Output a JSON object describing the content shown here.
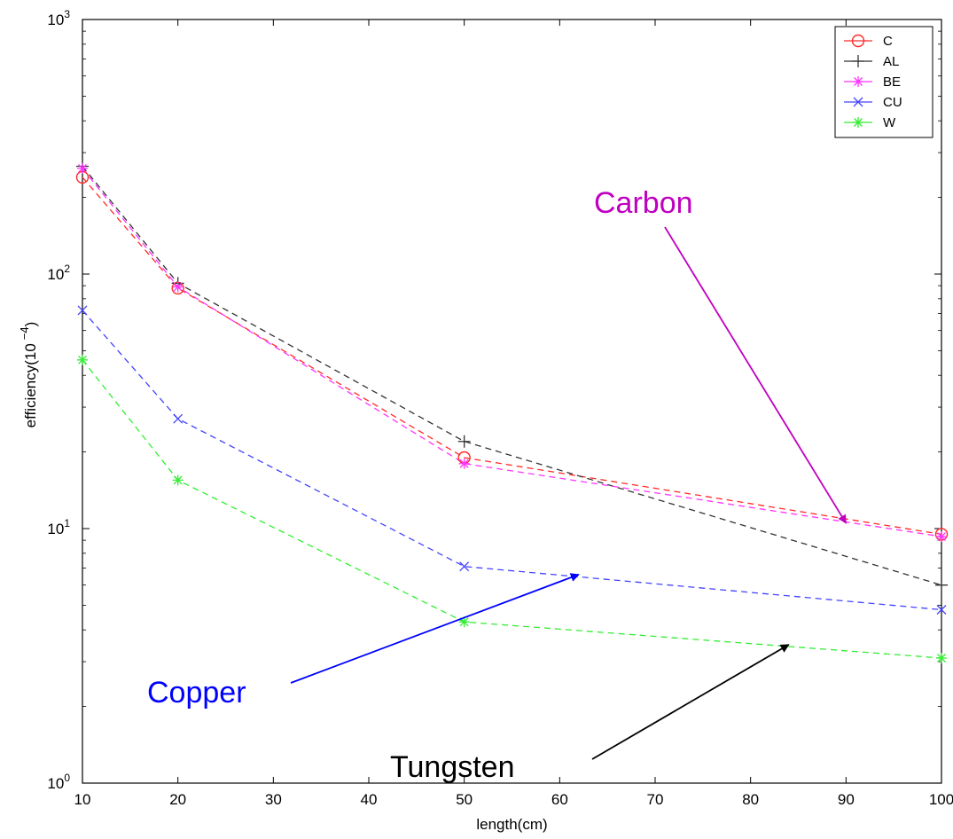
{
  "chart_data": {
    "type": "line",
    "xlabel": "length(cm)",
    "ylabel": "efficiency(10",
    "ylabel_exponent": "−4",
    "ylabel_close": ")",
    "y_scale": "log",
    "xlim": [
      10,
      100
    ],
    "ylim": [
      1,
      1000
    ],
    "x_ticks": [
      "10",
      "20",
      "30",
      "40",
      "50",
      "60",
      "70",
      "80",
      "90",
      "100"
    ],
    "y_ticks": [
      {
        "value": 1,
        "base": "10",
        "exp": "0"
      },
      {
        "value": 10,
        "base": "10",
        "exp": "1"
      },
      {
        "value": 100,
        "base": "10",
        "exp": "2"
      },
      {
        "value": 1000,
        "base": "10",
        "exp": "3"
      }
    ],
    "legend_position": "top-right",
    "grid": false,
    "x": [
      10,
      20,
      50,
      100
    ],
    "series": [
      {
        "name": "C",
        "color": "#ff2a2a",
        "marker": "circle",
        "values": [
          240,
          88,
          19,
          9.5
        ]
      },
      {
        "name": "AL",
        "color": "#333333",
        "marker": "plus",
        "values": [
          265,
          92,
          22,
          6
        ]
      },
      {
        "name": "BE",
        "color": "#ff33ff",
        "marker": "star",
        "values": [
          260,
          89,
          18,
          9.3
        ]
      },
      {
        "name": "CU",
        "color": "#4444ff",
        "marker": "x",
        "values": [
          72,
          27,
          7.1,
          4.8
        ]
      },
      {
        "name": "W",
        "color": "#33ee33",
        "marker": "star",
        "values": [
          46,
          15.5,
          4.3,
          3.1
        ]
      }
    ],
    "annotations": [
      {
        "text": "Carbon",
        "color": "#c000c0",
        "arrow_color": "#c000c0",
        "target": [
          90,
          10.5
        ]
      },
      {
        "text": "Copper",
        "color": "#0000ff",
        "arrow_color": "#0000ff",
        "target": [
          62,
          6.6
        ]
      },
      {
        "text": "Tungsten",
        "color": "#000000",
        "arrow_color": "#000000",
        "target": [
          84,
          3.5
        ]
      }
    ]
  }
}
